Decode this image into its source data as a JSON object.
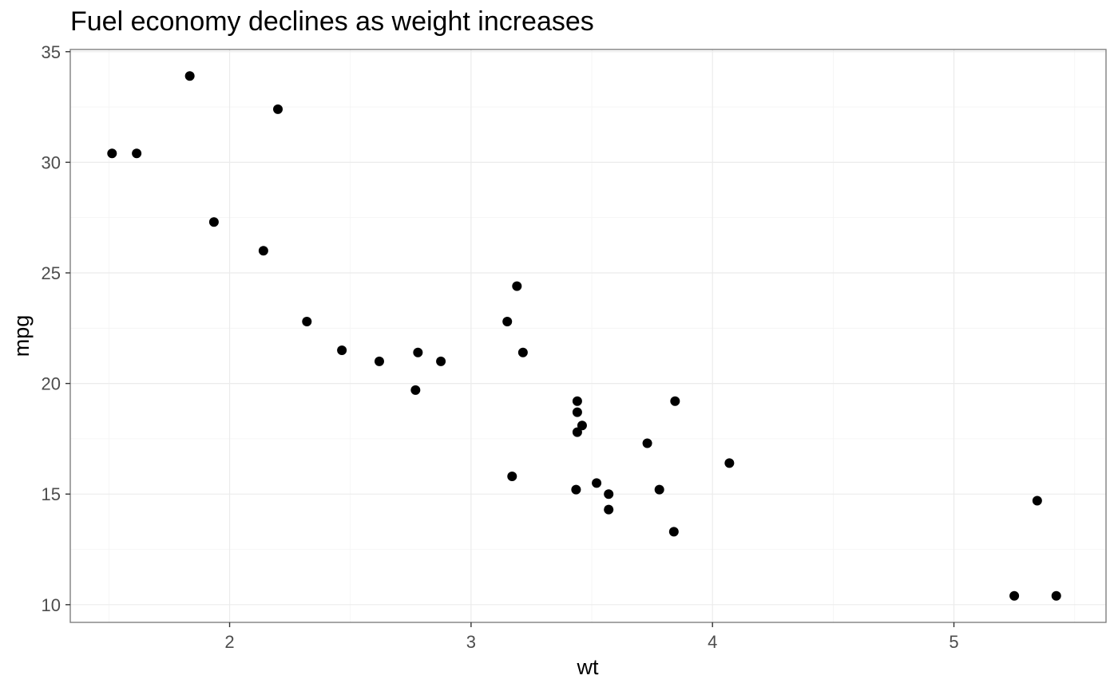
{
  "chart_data": {
    "type": "scatter",
    "title": "Fuel economy declines as weight increases",
    "xlabel": "wt",
    "ylabel": "mpg",
    "xlim": [
      1.34,
      5.63
    ],
    "ylim": [
      9.2,
      35.1
    ],
    "x_ticks": [
      2,
      3,
      4,
      5
    ],
    "y_ticks": [
      10,
      15,
      20,
      25,
      30,
      35
    ],
    "grid": true,
    "legend": "none",
    "point_color": "#000000",
    "points": [
      {
        "x": 1.513,
        "y": 30.4
      },
      {
        "x": 1.615,
        "y": 30.4
      },
      {
        "x": 1.835,
        "y": 33.9
      },
      {
        "x": 1.935,
        "y": 27.3
      },
      {
        "x": 2.14,
        "y": 26.0
      },
      {
        "x": 2.2,
        "y": 32.4
      },
      {
        "x": 2.32,
        "y": 22.8
      },
      {
        "x": 2.465,
        "y": 21.5
      },
      {
        "x": 2.62,
        "y": 21.0
      },
      {
        "x": 2.77,
        "y": 19.7
      },
      {
        "x": 2.78,
        "y": 21.4
      },
      {
        "x": 2.875,
        "y": 21.0
      },
      {
        "x": 3.15,
        "y": 22.8
      },
      {
        "x": 3.17,
        "y": 15.8
      },
      {
        "x": 3.19,
        "y": 24.4
      },
      {
        "x": 3.215,
        "y": 21.4
      },
      {
        "x": 3.435,
        "y": 15.2
      },
      {
        "x": 3.44,
        "y": 18.7
      },
      {
        "x": 3.44,
        "y": 19.2
      },
      {
        "x": 3.44,
        "y": 17.8
      },
      {
        "x": 3.46,
        "y": 18.1
      },
      {
        "x": 3.52,
        "y": 15.5
      },
      {
        "x": 3.57,
        "y": 15.0
      },
      {
        "x": 3.57,
        "y": 14.3
      },
      {
        "x": 3.73,
        "y": 17.3
      },
      {
        "x": 3.78,
        "y": 15.2
      },
      {
        "x": 3.84,
        "y": 13.3
      },
      {
        "x": 3.845,
        "y": 19.2
      },
      {
        "x": 4.07,
        "y": 16.4
      },
      {
        "x": 5.25,
        "y": 10.4
      },
      {
        "x": 5.345,
        "y": 14.7
      },
      {
        "x": 5.424,
        "y": 10.4
      }
    ]
  }
}
